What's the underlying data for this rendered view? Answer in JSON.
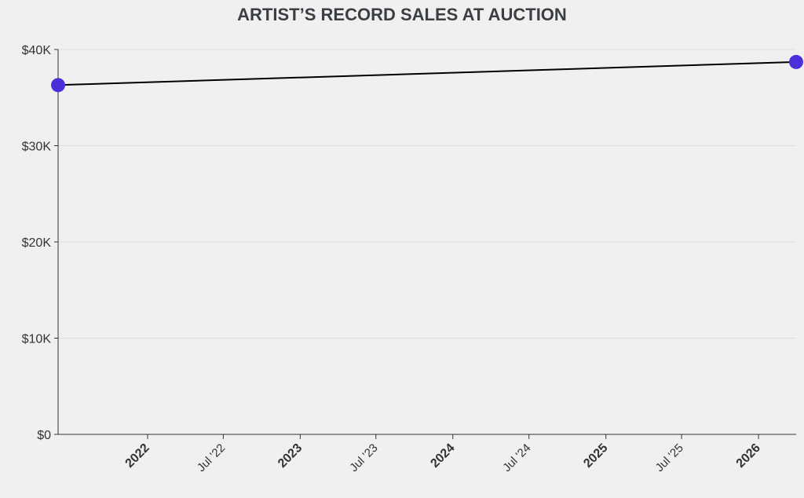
{
  "chart_data": {
    "type": "line",
    "title": "ARTIST’S RECORD SALES AT AUCTION",
    "xlabel": "",
    "ylabel": "",
    "x_axis": {
      "type": "date",
      "range": [
        "2021-06-01",
        "2026-04-01"
      ],
      "ticks": [
        {
          "date": "2022-01-01",
          "label": "2022",
          "major": true
        },
        {
          "date": "2022-07-01",
          "label": "Jul '22",
          "major": false
        },
        {
          "date": "2023-01-01",
          "label": "2023",
          "major": true
        },
        {
          "date": "2023-07-01",
          "label": "Jul '23",
          "major": false
        },
        {
          "date": "2024-01-01",
          "label": "2024",
          "major": true
        },
        {
          "date": "2024-07-01",
          "label": "Jul '24",
          "major": false
        },
        {
          "date": "2025-01-01",
          "label": "2025",
          "major": true
        },
        {
          "date": "2025-07-01",
          "label": "Jul '25",
          "major": false
        },
        {
          "date": "2026-01-01",
          "label": "2026",
          "major": true
        }
      ]
    },
    "y_axis": {
      "range": [
        0,
        40000
      ],
      "ticks": [
        {
          "value": 0,
          "label": "$0"
        },
        {
          "value": 10000,
          "label": "$10K"
        },
        {
          "value": 20000,
          "label": "$20K"
        },
        {
          "value": 30000,
          "label": "$30K"
        },
        {
          "value": 40000,
          "label": "$40K"
        }
      ]
    },
    "grid": true,
    "legend": "none",
    "series": [
      {
        "line_color": "#000000",
        "marker_color": "#4b2fd8",
        "points": [
          {
            "x": "2021-06-01",
            "y": 36300
          },
          {
            "x": "2026-04-01",
            "y": 38700
          }
        ]
      }
    ]
  }
}
